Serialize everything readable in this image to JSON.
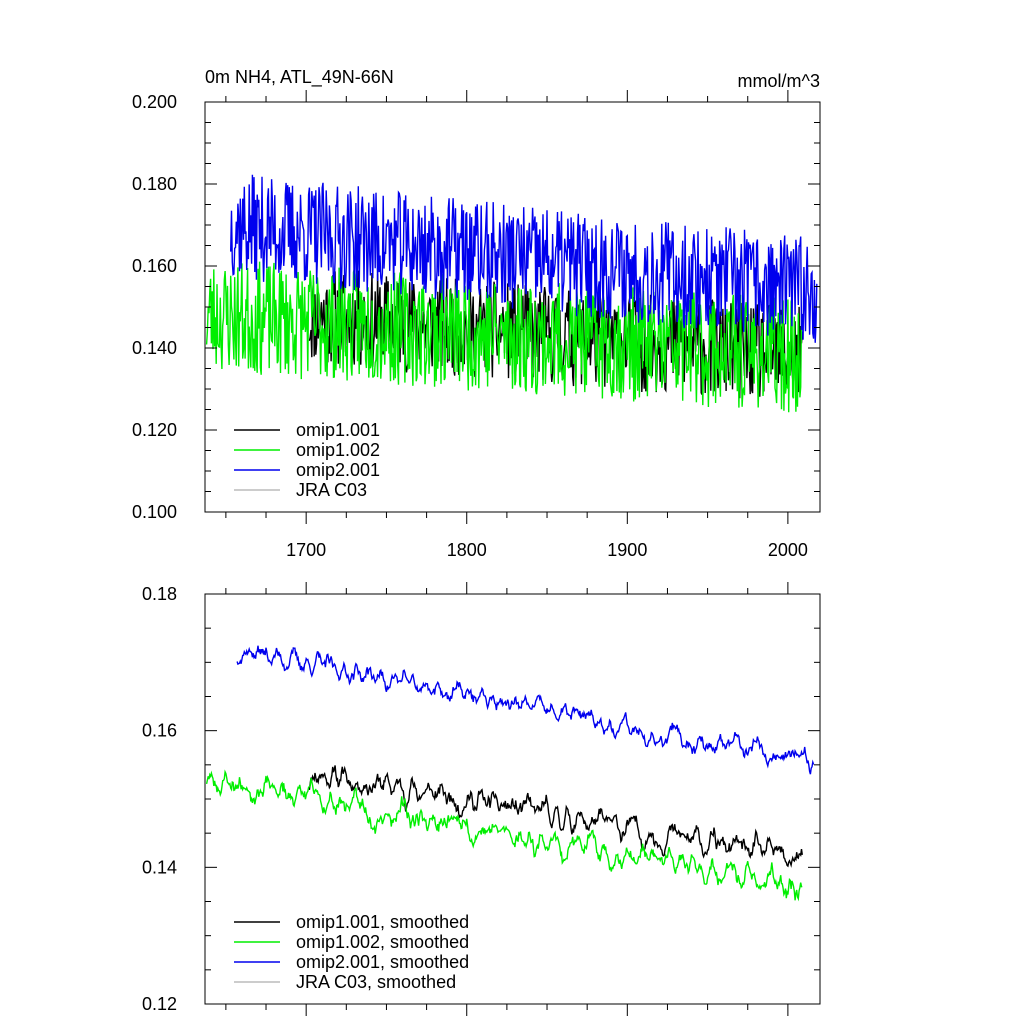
{
  "chart_data": [
    {
      "type": "line",
      "title": "0m NH4, ATL_49N-66N",
      "units": "mmol/m^3",
      "xlabel": "",
      "ylabel": "",
      "xlim": [
        1637,
        2020
      ],
      "ylim": [
        0.1,
        0.2
      ],
      "x_ticks": [
        1700,
        1800,
        1900,
        2000
      ],
      "x_tick_labels": [
        "1700",
        "1800",
        "1900",
        "2000"
      ],
      "y_ticks": [
        0.1,
        0.12,
        0.14,
        0.16,
        0.18,
        0.2
      ],
      "y_tick_labels": [
        "0.100",
        "0.120",
        "0.140",
        "0.160",
        "0.180",
        "0.200"
      ],
      "legend_position": "bottom-left",
      "series": [
        {
          "name": "omip1.001",
          "color": "#000000",
          "start": 1702,
          "end": 2009,
          "base": 0.148,
          "trend": -0.01,
          "amp": 0.012,
          "mode": "raw",
          "seed": 11
        },
        {
          "name": "omip1.002",
          "color": "#00ee00",
          "start": 1638,
          "end": 2009,
          "base": 0.148,
          "trend": -0.01,
          "amp": 0.014,
          "mode": "raw",
          "seed": 23
        },
        {
          "name": "omip2.001",
          "color": "#0000ee",
          "start": 1653,
          "end": 2018,
          "base": 0.17,
          "trend": -0.016,
          "amp": 0.013,
          "mode": "raw",
          "seed": 37
        },
        {
          "name": "JRA C03",
          "color": "#bbbbbb",
          "start": null,
          "end": null,
          "base": null,
          "trend": null,
          "amp": null,
          "mode": "none",
          "seed": 0
        }
      ]
    },
    {
      "type": "line",
      "title": "",
      "units": "",
      "xlabel": "",
      "ylabel": "",
      "xlim": [
        1637,
        2020
      ],
      "ylim": [
        0.12,
        0.18
      ],
      "x_ticks": [
        1700,
        1800,
        1900,
        2000
      ],
      "x_tick_labels": [
        "",
        "",
        "",
        ""
      ],
      "y_ticks": [
        0.12,
        0.14,
        0.16,
        0.18
      ],
      "y_tick_labels": [
        "0.12",
        "0.14",
        "0.16",
        "0.18"
      ],
      "legend_position": "bottom-left",
      "series": [
        {
          "name": "omip1.001, smoothed",
          "color": "#000000",
          "start": 1702,
          "end": 2009,
          "base": 0.154,
          "trend": -0.013,
          "amp": 0.005,
          "mode": "smooth",
          "seed": 11
        },
        {
          "name": "omip1.002, smoothed",
          "color": "#00ee00",
          "start": 1638,
          "end": 2009,
          "base": 0.153,
          "trend": -0.016,
          "amp": 0.005,
          "mode": "smooth",
          "seed": 23
        },
        {
          "name": "omip2.001, smoothed",
          "color": "#0000ee",
          "start": 1657,
          "end": 2016,
          "base": 0.172,
          "trend": -0.017,
          "amp": 0.004,
          "mode": "smooth",
          "seed": 37
        },
        {
          "name": "JRA C03, smoothed",
          "color": "#bbbbbb",
          "start": null,
          "end": null,
          "base": null,
          "trend": null,
          "amp": null,
          "mode": "none",
          "seed": 0
        }
      ]
    }
  ]
}
